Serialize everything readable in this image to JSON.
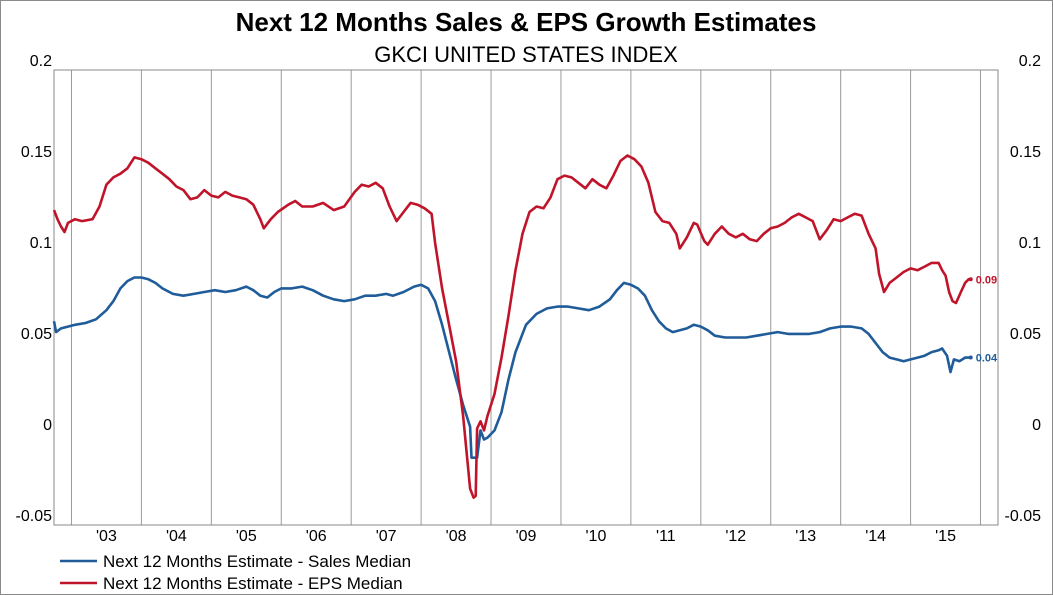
{
  "chart_data": {
    "type": "line",
    "title": "Next 12 Months Sales & EPS Growth Estimates",
    "subtitle": "GKCI UNITED STATES INDEX",
    "ylim": [
      -0.05,
      0.2
    ],
    "y_ticks": [
      "0.2",
      "0.15",
      "0.1",
      "0.05",
      "0",
      "-0.05"
    ],
    "x_range": [
      2002.75,
      2016.25
    ],
    "x_tick_labels": [
      "'03",
      "'04",
      "'05",
      "'06",
      "'07",
      "'08",
      "'09",
      "'10",
      "'11",
      "'12",
      "'13",
      "'14",
      "'15"
    ],
    "grid": "vertical",
    "legend_position": "bottom-left",
    "series": [
      {
        "name": "Next 12 Months Estimate - Sales Median",
        "color": "#1f5c99",
        "end_label": "0.04",
        "points": [
          [
            2002.75,
            0.062
          ],
          [
            2002.78,
            0.056
          ],
          [
            2002.85,
            0.058
          ],
          [
            2002.95,
            0.059
          ],
          [
            2003.05,
            0.06
          ],
          [
            2003.2,
            0.061
          ],
          [
            2003.35,
            0.063
          ],
          [
            2003.5,
            0.068
          ],
          [
            2003.6,
            0.073
          ],
          [
            2003.7,
            0.08
          ],
          [
            2003.8,
            0.084
          ],
          [
            2003.9,
            0.086
          ],
          [
            2004.0,
            0.086
          ],
          [
            2004.1,
            0.085
          ],
          [
            2004.2,
            0.083
          ],
          [
            2004.3,
            0.08
          ],
          [
            2004.45,
            0.077
          ],
          [
            2004.6,
            0.076
          ],
          [
            2004.75,
            0.077
          ],
          [
            2004.9,
            0.078
          ],
          [
            2005.05,
            0.079
          ],
          [
            2005.2,
            0.078
          ],
          [
            2005.35,
            0.079
          ],
          [
            2005.5,
            0.081
          ],
          [
            2005.6,
            0.079
          ],
          [
            2005.7,
            0.076
          ],
          [
            2005.8,
            0.075
          ],
          [
            2005.9,
            0.078
          ],
          [
            2006.0,
            0.08
          ],
          [
            2006.15,
            0.08
          ],
          [
            2006.3,
            0.081
          ],
          [
            2006.45,
            0.079
          ],
          [
            2006.6,
            0.076
          ],
          [
            2006.75,
            0.074
          ],
          [
            2006.9,
            0.073
          ],
          [
            2007.05,
            0.074
          ],
          [
            2007.2,
            0.076
          ],
          [
            2007.35,
            0.076
          ],
          [
            2007.5,
            0.077
          ],
          [
            2007.6,
            0.076
          ],
          [
            2007.75,
            0.078
          ],
          [
            2007.9,
            0.081
          ],
          [
            2008.0,
            0.082
          ],
          [
            2008.1,
            0.08
          ],
          [
            2008.2,
            0.073
          ],
          [
            2008.3,
            0.06
          ],
          [
            2008.4,
            0.045
          ],
          [
            2008.5,
            0.03
          ],
          [
            2008.6,
            0.016
          ],
          [
            2008.65,
            0.01
          ],
          [
            2008.7,
            0.004
          ],
          [
            2008.72,
            -0.013
          ],
          [
            2008.8,
            -0.013
          ],
          [
            2008.85,
            0.002
          ],
          [
            2008.9,
            -0.003
          ],
          [
            2008.95,
            -0.002
          ],
          [
            2009.05,
            0.002
          ],
          [
            2009.15,
            0.012
          ],
          [
            2009.25,
            0.03
          ],
          [
            2009.35,
            0.045
          ],
          [
            2009.5,
            0.06
          ],
          [
            2009.65,
            0.066
          ],
          [
            2009.8,
            0.069
          ],
          [
            2009.95,
            0.07
          ],
          [
            2010.1,
            0.07
          ],
          [
            2010.25,
            0.069
          ],
          [
            2010.4,
            0.068
          ],
          [
            2010.55,
            0.07
          ],
          [
            2010.7,
            0.074
          ],
          [
            2010.8,
            0.079
          ],
          [
            2010.9,
            0.083
          ],
          [
            2011.0,
            0.082
          ],
          [
            2011.1,
            0.08
          ],
          [
            2011.2,
            0.076
          ],
          [
            2011.3,
            0.068
          ],
          [
            2011.4,
            0.062
          ],
          [
            2011.5,
            0.058
          ],
          [
            2011.6,
            0.056
          ],
          [
            2011.7,
            0.057
          ],
          [
            2011.8,
            0.058
          ],
          [
            2011.9,
            0.06
          ],
          [
            2012.0,
            0.059
          ],
          [
            2012.1,
            0.057
          ],
          [
            2012.2,
            0.054
          ],
          [
            2012.35,
            0.053
          ],
          [
            2012.5,
            0.053
          ],
          [
            2012.65,
            0.053
          ],
          [
            2012.8,
            0.054
          ],
          [
            2012.95,
            0.055
          ],
          [
            2013.1,
            0.056
          ],
          [
            2013.25,
            0.055
          ],
          [
            2013.4,
            0.055
          ],
          [
            2013.55,
            0.055
          ],
          [
            2013.7,
            0.056
          ],
          [
            2013.85,
            0.058
          ],
          [
            2014.0,
            0.059
          ],
          [
            2014.15,
            0.059
          ],
          [
            2014.3,
            0.058
          ],
          [
            2014.4,
            0.055
          ],
          [
            2014.5,
            0.05
          ],
          [
            2014.6,
            0.045
          ],
          [
            2014.7,
            0.042
          ],
          [
            2014.8,
            0.041
          ],
          [
            2014.9,
            0.04
          ],
          [
            2015.0,
            0.041
          ],
          [
            2015.1,
            0.042
          ],
          [
            2015.2,
            0.043
          ],
          [
            2015.3,
            0.045
          ],
          [
            2015.4,
            0.046
          ],
          [
            2015.45,
            0.047
          ],
          [
            2015.52,
            0.043
          ],
          [
            2015.57,
            0.034
          ],
          [
            2015.62,
            0.041
          ],
          [
            2015.7,
            0.04
          ],
          [
            2015.78,
            0.042
          ],
          [
            2015.86,
            0.042
          ]
        ]
      },
      {
        "name": "Next 12 Months Estimate - EPS Median",
        "color": "#c0142a",
        "end_label": "0.09",
        "points": [
          [
            2002.75,
            0.123
          ],
          [
            2002.8,
            0.118
          ],
          [
            2002.85,
            0.114
          ],
          [
            2002.9,
            0.111
          ],
          [
            2002.95,
            0.116
          ],
          [
            2003.05,
            0.118
          ],
          [
            2003.15,
            0.117
          ],
          [
            2003.3,
            0.118
          ],
          [
            2003.4,
            0.125
          ],
          [
            2003.5,
            0.137
          ],
          [
            2003.6,
            0.141
          ],
          [
            2003.7,
            0.143
          ],
          [
            2003.8,
            0.146
          ],
          [
            2003.9,
            0.152
          ],
          [
            2004.0,
            0.151
          ],
          [
            2004.1,
            0.149
          ],
          [
            2004.2,
            0.146
          ],
          [
            2004.3,
            0.143
          ],
          [
            2004.4,
            0.14
          ],
          [
            2004.5,
            0.136
          ],
          [
            2004.6,
            0.134
          ],
          [
            2004.7,
            0.129
          ],
          [
            2004.8,
            0.13
          ],
          [
            2004.9,
            0.134
          ],
          [
            2005.0,
            0.131
          ],
          [
            2005.1,
            0.13
          ],
          [
            2005.2,
            0.133
          ],
          [
            2005.3,
            0.131
          ],
          [
            2005.4,
            0.13
          ],
          [
            2005.5,
            0.129
          ],
          [
            2005.6,
            0.126
          ],
          [
            2005.7,
            0.118
          ],
          [
            2005.75,
            0.113
          ],
          [
            2005.85,
            0.118
          ],
          [
            2005.95,
            0.122
          ],
          [
            2006.1,
            0.126
          ],
          [
            2006.2,
            0.128
          ],
          [
            2006.3,
            0.125
          ],
          [
            2006.45,
            0.125
          ],
          [
            2006.6,
            0.127
          ],
          [
            2006.75,
            0.123
          ],
          [
            2006.9,
            0.125
          ],
          [
            2007.05,
            0.133
          ],
          [
            2007.15,
            0.137
          ],
          [
            2007.25,
            0.136
          ],
          [
            2007.35,
            0.138
          ],
          [
            2007.45,
            0.135
          ],
          [
            2007.55,
            0.125
          ],
          [
            2007.65,
            0.117
          ],
          [
            2007.75,
            0.122
          ],
          [
            2007.85,
            0.127
          ],
          [
            2007.95,
            0.126
          ],
          [
            2008.05,
            0.124
          ],
          [
            2008.15,
            0.121
          ],
          [
            2008.2,
            0.105
          ],
          [
            2008.3,
            0.08
          ],
          [
            2008.4,
            0.06
          ],
          [
            2008.5,
            0.04
          ],
          [
            2008.6,
            0.01
          ],
          [
            2008.65,
            -0.01
          ],
          [
            2008.7,
            -0.03
          ],
          [
            2008.75,
            -0.035
          ],
          [
            2008.78,
            -0.034
          ],
          [
            2008.8,
            0.003
          ],
          [
            2008.85,
            0.007
          ],
          [
            2008.9,
            0.002
          ],
          [
            2008.95,
            0.01
          ],
          [
            2009.05,
            0.022
          ],
          [
            2009.15,
            0.042
          ],
          [
            2009.25,
            0.065
          ],
          [
            2009.35,
            0.09
          ],
          [
            2009.45,
            0.11
          ],
          [
            2009.55,
            0.122
          ],
          [
            2009.65,
            0.125
          ],
          [
            2009.75,
            0.124
          ],
          [
            2009.85,
            0.13
          ],
          [
            2009.95,
            0.14
          ],
          [
            2010.05,
            0.142
          ],
          [
            2010.15,
            0.141
          ],
          [
            2010.25,
            0.138
          ],
          [
            2010.35,
            0.135
          ],
          [
            2010.45,
            0.14
          ],
          [
            2010.55,
            0.137
          ],
          [
            2010.65,
            0.135
          ],
          [
            2010.75,
            0.142
          ],
          [
            2010.85,
            0.15
          ],
          [
            2010.95,
            0.153
          ],
          [
            2011.05,
            0.151
          ],
          [
            2011.15,
            0.147
          ],
          [
            2011.25,
            0.138
          ],
          [
            2011.35,
            0.122
          ],
          [
            2011.45,
            0.117
          ],
          [
            2011.55,
            0.116
          ],
          [
            2011.65,
            0.11
          ],
          [
            2011.7,
            0.102
          ],
          [
            2011.8,
            0.108
          ],
          [
            2011.9,
            0.116
          ],
          [
            2011.95,
            0.115
          ],
          [
            2012.05,
            0.106
          ],
          [
            2012.1,
            0.104
          ],
          [
            2012.2,
            0.11
          ],
          [
            2012.3,
            0.114
          ],
          [
            2012.4,
            0.11
          ],
          [
            2012.5,
            0.108
          ],
          [
            2012.6,
            0.11
          ],
          [
            2012.7,
            0.107
          ],
          [
            2012.8,
            0.106
          ],
          [
            2012.9,
            0.11
          ],
          [
            2013.0,
            0.113
          ],
          [
            2013.1,
            0.114
          ],
          [
            2013.2,
            0.116
          ],
          [
            2013.3,
            0.119
          ],
          [
            2013.4,
            0.121
          ],
          [
            2013.5,
            0.119
          ],
          [
            2013.6,
            0.117
          ],
          [
            2013.7,
            0.107
          ],
          [
            2013.8,
            0.112
          ],
          [
            2013.9,
            0.118
          ],
          [
            2014.0,
            0.117
          ],
          [
            2014.1,
            0.119
          ],
          [
            2014.2,
            0.121
          ],
          [
            2014.3,
            0.12
          ],
          [
            2014.4,
            0.11
          ],
          [
            2014.5,
            0.102
          ],
          [
            2014.55,
            0.088
          ],
          [
            2014.62,
            0.078
          ],
          [
            2014.7,
            0.083
          ],
          [
            2014.8,
            0.086
          ],
          [
            2014.9,
            0.089
          ],
          [
            2015.0,
            0.091
          ],
          [
            2015.1,
            0.09
          ],
          [
            2015.2,
            0.092
          ],
          [
            2015.3,
            0.094
          ],
          [
            2015.4,
            0.094
          ],
          [
            2015.45,
            0.09
          ],
          [
            2015.5,
            0.087
          ],
          [
            2015.55,
            0.078
          ],
          [
            2015.6,
            0.073
          ],
          [
            2015.65,
            0.072
          ],
          [
            2015.72,
            0.078
          ],
          [
            2015.78,
            0.083
          ],
          [
            2015.83,
            0.085
          ],
          [
            2015.86,
            0.085
          ]
        ]
      }
    ]
  }
}
